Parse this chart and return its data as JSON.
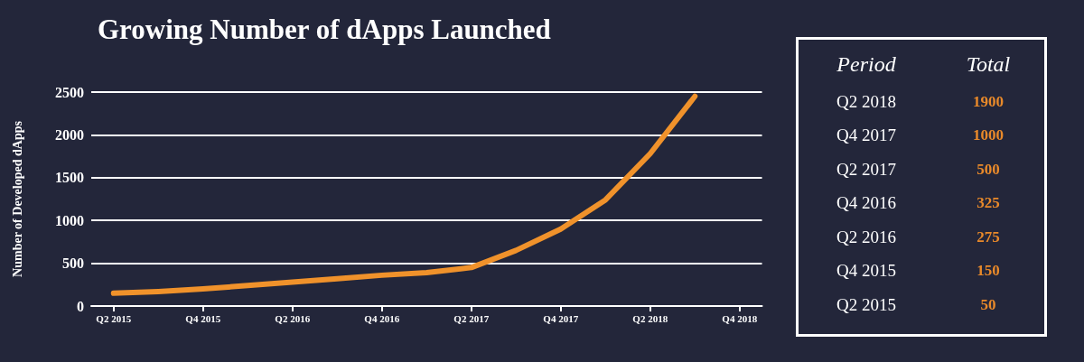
{
  "chart_data": [
    {
      "type": "line",
      "title": "Growing Number of dApps Launched",
      "ylabel": "Number of Developed dApps",
      "categories": [
        "Q2 2015",
        null,
        "Q4 2015",
        null,
        "Q2 2016",
        null,
        "Q4 2016",
        null,
        "Q2 2017",
        null,
        "Q4 2017",
        null,
        "Q2 2018",
        null,
        "Q4 2018"
      ],
      "series": [
        {
          "color": "#f0922b",
          "values": [
            150,
            170,
            200,
            240,
            280,
            320,
            360,
            390,
            450,
            650,
            900,
            1240,
            1780,
            2450,
            null
          ]
        }
      ],
      "ylim": [
        0,
        2500
      ],
      "yticks": [
        0,
        500,
        1000,
        1500,
        2000,
        2500
      ],
      "grid": "y"
    },
    {
      "type": "other",
      "xlabel": "Period",
      "ylabel": "Total",
      "categories": [
        "Q2 2018",
        "Q4 2017",
        "Q2 2017",
        "Q4 2016",
        "Q2 2016",
        "Q4 2015",
        "Q2 2015"
      ],
      "values": [
        1900,
        1000,
        500,
        325,
        275,
        150,
        50
      ],
      "color": "#e8892a",
      "data_labels": true
    }
  ]
}
